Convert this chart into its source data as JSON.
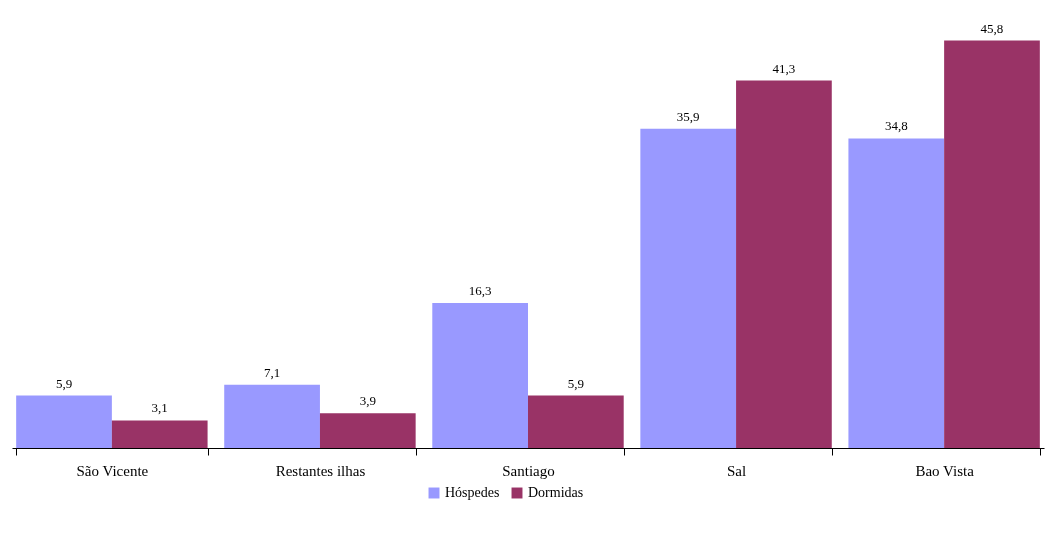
{
  "chart_data": {
    "type": "bar",
    "categories": [
      "São Vicente",
      "Restantes ilhas",
      "Santiago",
      "Sal",
      "Bao Vista"
    ],
    "series": [
      {
        "name": "Hóspedes",
        "color": "#9999ff",
        "values": [
          5.9,
          7.1,
          16.3,
          35.9,
          34.8
        ],
        "value_labels": [
          "5,9",
          "7,1",
          "16,3",
          "35,9",
          "34,8"
        ]
      },
      {
        "name": "Dormidas",
        "color": "#993366",
        "values": [
          3.1,
          3.9,
          5.9,
          41.3,
          45.8
        ],
        "value_labels": [
          "3,1",
          "3,9",
          "5,9",
          "41,3",
          "45,8"
        ]
      }
    ],
    "legend": "bottom",
    "grid": false
  }
}
